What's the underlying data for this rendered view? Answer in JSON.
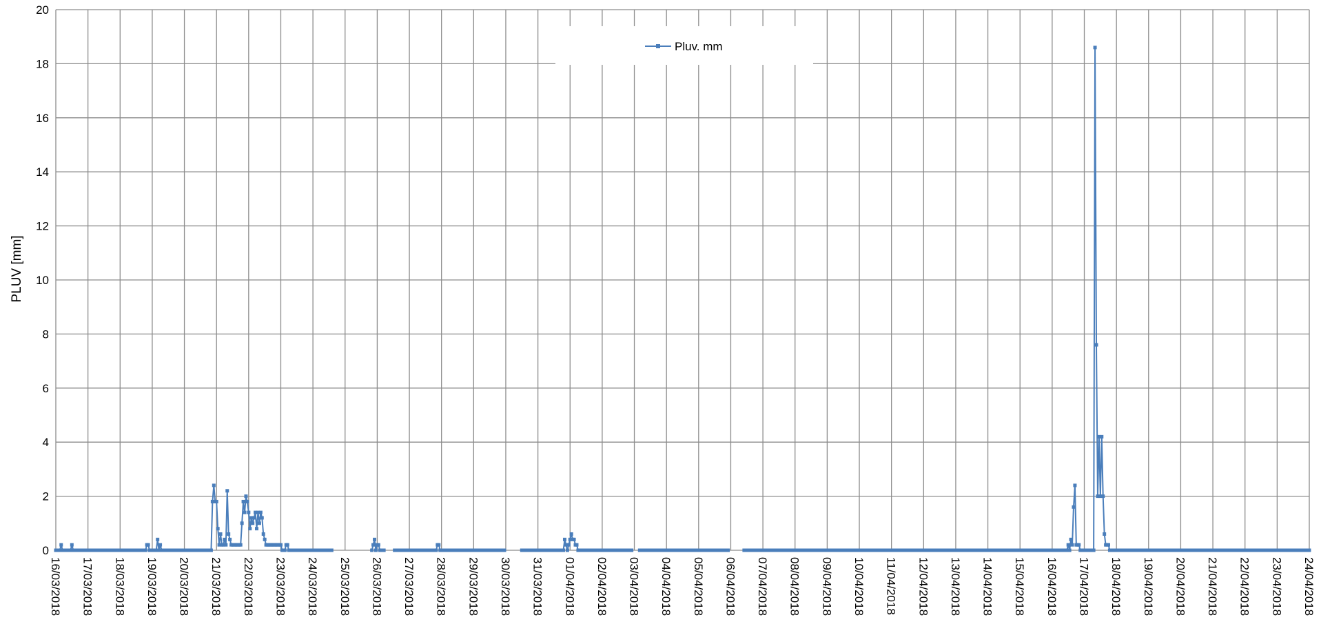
{
  "chart_data": {
    "type": "line",
    "title": "",
    "xlabel": "",
    "ylabel": "PLUV [mm]",
    "ylim": [
      0,
      20
    ],
    "yticks": [
      0,
      2,
      4,
      6,
      8,
      10,
      12,
      14,
      16,
      18,
      20
    ],
    "x_start": "16/03/2018",
    "x_end": "24/04/2018",
    "xtick_labels": [
      "16/03/2018",
      "17/03/2018",
      "18/03/2018",
      "19/03/2018",
      "20/03/2018",
      "21/03/2018",
      "22/03/2018",
      "23/03/2018",
      "24/03/2018",
      "25/03/2018",
      "26/03/2018",
      "27/03/2018",
      "28/03/2018",
      "29/03/2018",
      "30/03/2018",
      "31/03/2018",
      "01/04/2018",
      "02/04/2018",
      "03/04/2018",
      "04/04/2018",
      "05/04/2018",
      "06/04/2018",
      "07/04/2018",
      "08/04/2018",
      "09/04/2018",
      "10/04/2018",
      "11/04/2018",
      "12/04/2018",
      "13/04/2018",
      "14/04/2018",
      "15/04/2018",
      "16/04/2018",
      "17/04/2018",
      "18/04/2018",
      "19/04/2018",
      "20/04/2018",
      "21/04/2018",
      "22/04/2018",
      "23/04/2018",
      "24/04/2018"
    ],
    "grid": true,
    "legend_position": "top-center",
    "series": [
      {
        "name": "Pluv. mm",
        "color": "#4a7ebb",
        "x": [
          "16/03/2018 04:00",
          "16/03/2018 12:00",
          "18/03/2018 20:00",
          "18/03/2018 21:00",
          "19/03/2018 04:00",
          "19/03/2018 06:00",
          "20/03/2018 21:00",
          "20/03/2018 22:00",
          "20/03/2018 23:00",
          "21/03/2018 00:00",
          "21/03/2018 01:00",
          "21/03/2018 02:00",
          "21/03/2018 03:00",
          "21/03/2018 04:00",
          "21/03/2018 05:00",
          "21/03/2018 06:00",
          "21/03/2018 07:00",
          "21/03/2018 08:00",
          "21/03/2018 09:00",
          "21/03/2018 10:00",
          "21/03/2018 11:00",
          "21/03/2018 12:00",
          "21/03/2018 13:00",
          "21/03/2018 14:00",
          "21/03/2018 15:00",
          "21/03/2018 16:00",
          "21/03/2018 17:00",
          "21/03/2018 18:00",
          "21/03/2018 19:00",
          "21/03/2018 20:00",
          "21/03/2018 21:00",
          "21/03/2018 22:00",
          "21/03/2018 23:00",
          "22/03/2018 00:00",
          "22/03/2018 01:00",
          "22/03/2018 02:00",
          "22/03/2018 03:00",
          "22/03/2018 04:00",
          "22/03/2018 05:00",
          "22/03/2018 06:00",
          "22/03/2018 07:00",
          "22/03/2018 08:00",
          "22/03/2018 09:00",
          "22/03/2018 10:00",
          "22/03/2018 11:00",
          "22/03/2018 12:00",
          "22/03/2018 13:00",
          "22/03/2018 14:00",
          "22/03/2018 15:00",
          "22/03/2018 16:00",
          "22/03/2018 17:00",
          "22/03/2018 18:00",
          "22/03/2018 19:00",
          "22/03/2018 20:00",
          "22/03/2018 21:00",
          "22/03/2018 22:00",
          "22/03/2018 23:00",
          "23/03/2018 00:00",
          "23/03/2018 04:00",
          "23/03/2018 05:00",
          "25/03/2018 21:00",
          "25/03/2018 22:00",
          "26/03/2018 00:00",
          "26/03/2018 01:00",
          "27/03/2018 21:00",
          "27/03/2018 22:00",
          "31/03/2018 20:00",
          "31/03/2018 21:00",
          "31/03/2018 23:00",
          "01/04/2018 00:00",
          "01/04/2018 01:00",
          "01/04/2018 02:00",
          "01/04/2018 03:00",
          "01/04/2018 04:00",
          "01/04/2018 05:00",
          "16/04/2018 12:00",
          "16/04/2018 14:00",
          "16/04/2018 15:00",
          "16/04/2018 16:00",
          "16/04/2018 17:00",
          "16/04/2018 18:00",
          "16/04/2018 19:00",
          "16/04/2018 20:00",
          "17/04/2018 08:00",
          "17/04/2018 09:00",
          "17/04/2018 10:00",
          "17/04/2018 11:00",
          "17/04/2018 12:00",
          "17/04/2018 13:00",
          "17/04/2018 14:00",
          "17/04/2018 15:00",
          "17/04/2018 16:00",
          "17/04/2018 17:00",
          "17/04/2018 18:00"
        ],
        "y": [
          0.2,
          0.2,
          0.2,
          0.2,
          0.4,
          0.2,
          1.8,
          2.4,
          1.8,
          1.8,
          0.8,
          0.2,
          0.6,
          0.2,
          0.2,
          0.4,
          0.2,
          2.2,
          0.6,
          0.4,
          0.2,
          0.2,
          0.2,
          0.2,
          0.2,
          0.2,
          0.2,
          0.2,
          1.0,
          1.8,
          1.4,
          2.0,
          1.8,
          1.4,
          0.8,
          1.2,
          1.0,
          1.2,
          1.4,
          0.8,
          1.4,
          1.0,
          1.4,
          1.2,
          0.6,
          0.4,
          0.2,
          0.2,
          0.2,
          0.2,
          0.2,
          0.2,
          0.2,
          0.2,
          0.2,
          0.2,
          0.2,
          0.2,
          0.2,
          0.2,
          0.2,
          0.4,
          0.2,
          0.2,
          0.2,
          0.2,
          0.4,
          0.2,
          0.2,
          0.4,
          0.6,
          0.4,
          0.4,
          0.2,
          0.2,
          0.2,
          0.4,
          0.2,
          1.6,
          2.4,
          0.2,
          0.2,
          0.2,
          18.6,
          7.6,
          2.0,
          4.2,
          2.0,
          4.2,
          2.0,
          0.6,
          0.2,
          0.2,
          0.2
        ],
        "gaps": [
          [
            "24/03/2018 14:00",
            "25/03/2018 20:00"
          ],
          [
            "26/03/2018 05:00",
            "26/03/2018 13:00"
          ],
          [
            "29/03/2018 23:00",
            "30/03/2018 12:00"
          ],
          [
            "02/04/2018 22:00",
            "03/04/2018 04:00"
          ],
          [
            "05/04/2018 22:00",
            "06/04/2018 10:00"
          ]
        ]
      }
    ]
  }
}
